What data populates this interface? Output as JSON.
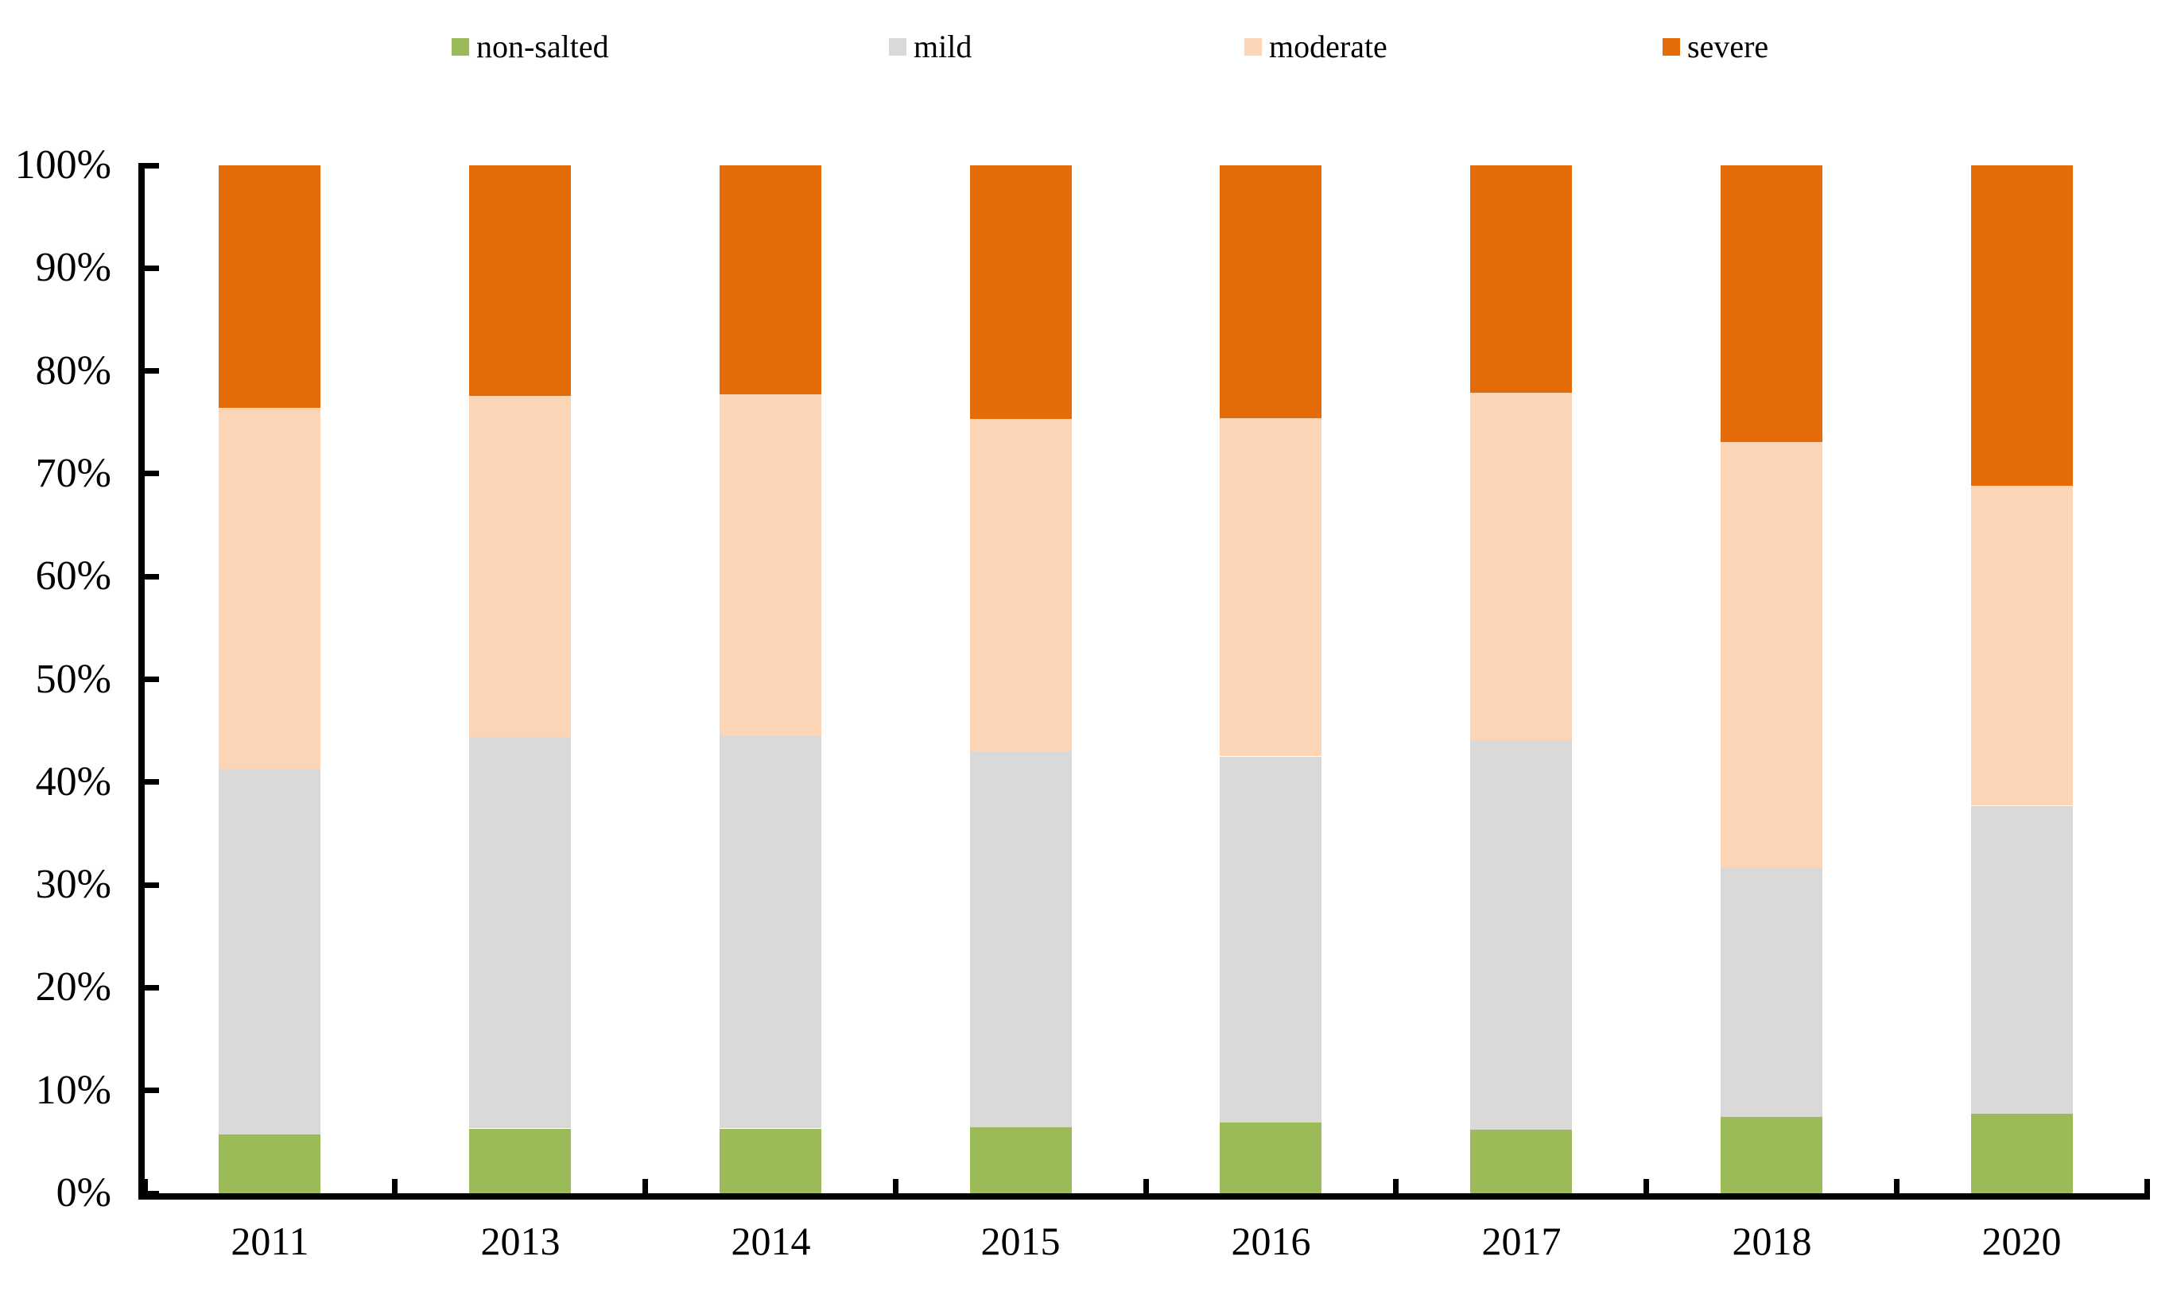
{
  "chart_data": {
    "type": "bar",
    "subtype": "stacked-100-percent-column",
    "title": "",
    "xlabel": "",
    "ylabel": "",
    "grid": false,
    "background_color": "#ffffff",
    "axis_color": "#000000",
    "categories": [
      "2011",
      "2013",
      "2014",
      "2015",
      "2016",
      "2017",
      "2018",
      "2020"
    ],
    "series": [
      {
        "name": "non-salted",
        "color": "#9bbb59",
        "values": [
          5.7,
          6.3,
          6.3,
          6.4,
          6.9,
          6.2,
          7.4,
          7.7
        ]
      },
      {
        "name": "mild",
        "color": "#d9d9d9",
        "values": [
          35.6,
          38.1,
          38.2,
          36.5,
          35.6,
          37.9,
          24.3,
          30.0
        ]
      },
      {
        "name": "moderate",
        "color": "#fbd5b5",
        "values": [
          35.1,
          33.2,
          33.2,
          32.4,
          32.9,
          33.8,
          41.4,
          31.1
        ]
      },
      {
        "name": "severe",
        "color": "#e36c09",
        "values": [
          23.6,
          22.4,
          22.3,
          24.7,
          24.6,
          22.1,
          26.9,
          31.2
        ]
      }
    ],
    "y_axis": {
      "min": 0,
      "max": 100,
      "tick_step": 10,
      "tick_labels": [
        "0%",
        "10%",
        "20%",
        "30%",
        "40%",
        "50%",
        "60%",
        "70%",
        "80%",
        "90%",
        "100%"
      ]
    },
    "legend": {
      "position": "top",
      "entries": [
        "non-salted",
        "mild",
        "moderate",
        "severe"
      ]
    }
  }
}
